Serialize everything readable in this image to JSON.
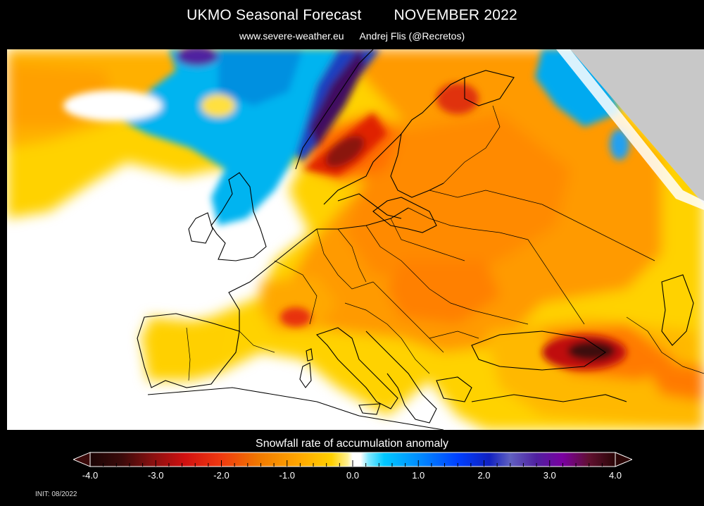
{
  "header": {
    "title": "UKMO Seasonal Forecast",
    "period": "NOVEMBER 2022",
    "website": "www.severe-weather.eu",
    "author": "Andrej Flis (@Recretos)"
  },
  "map": {
    "region": "Europe",
    "variable": "Snowfall rate of accumulation anomaly",
    "no_data_color": "#c8c8c8"
  },
  "colorbar": {
    "title": "Snowfall rate of accumulation anomaly",
    "min": -4.0,
    "max": 4.0,
    "ticks": [
      "-4.0",
      "-3.0",
      "-2.0",
      "-1.0",
      "0.0",
      "1.0",
      "2.0",
      "3.0",
      "4.0"
    ],
    "colors": {
      "strong_negative": "#3a0a0a",
      "negative": "#d01010",
      "moderate_negative": "#f07800",
      "weak_negative": "#ffd000",
      "neutral": "#ffffff",
      "weak_positive": "#00c8ff",
      "positive": "#0040ff",
      "strong_positive": "#7a00a0"
    }
  },
  "footer": {
    "init": "INIT: 08/2022"
  }
}
